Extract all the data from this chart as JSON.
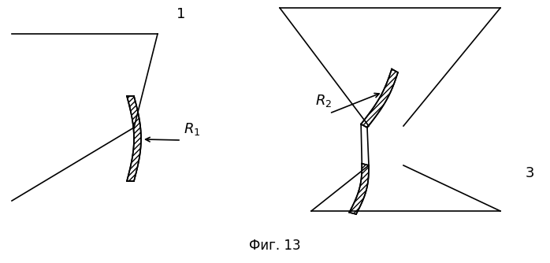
{
  "bg_color": "#ffffff",
  "line_color": "#000000",
  "fig_width": 6.98,
  "fig_height": 3.34,
  "dpi": 100,
  "caption": "Фиг. 13",
  "label1": "1",
  "label3": "3",
  "R1_label": "$R_1$",
  "R2_label": "$R_2$"
}
